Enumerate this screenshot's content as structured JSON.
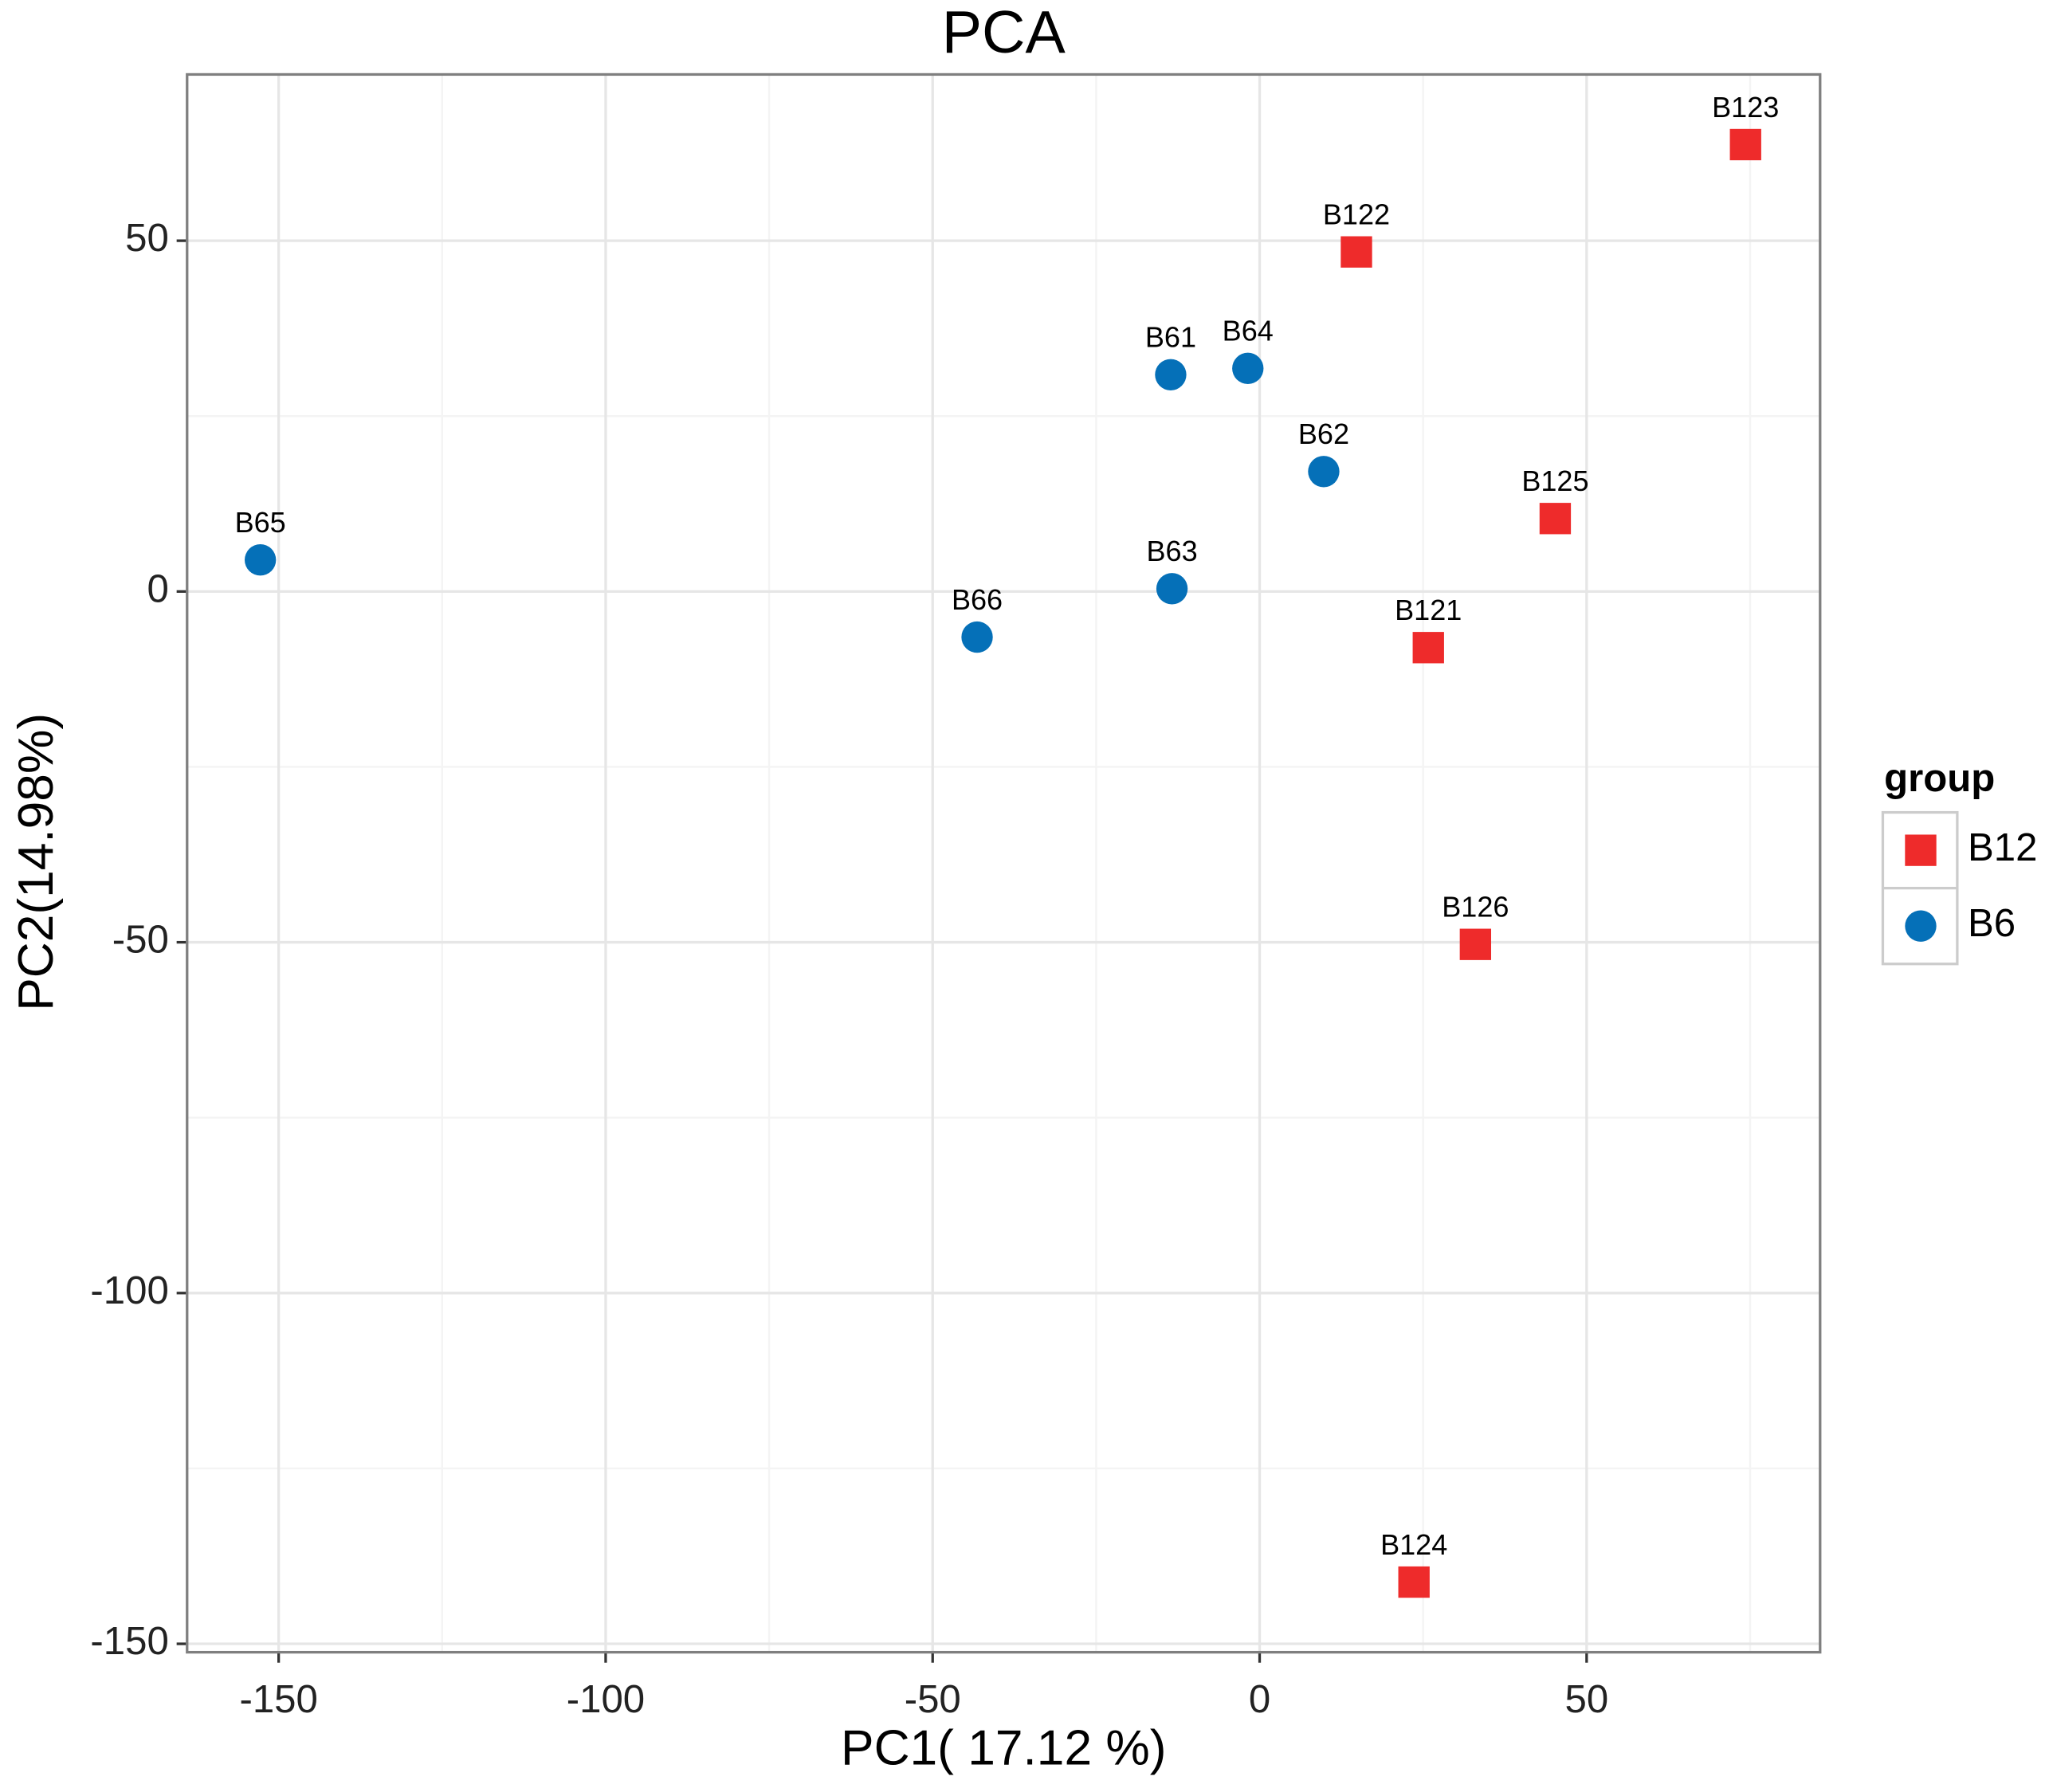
{
  "chart_data": {
    "type": "scatter",
    "title": "PCA",
    "x_label": "PC1( 17.12 %)",
    "y_label": "PC2(14.98%)",
    "xlim": [
      -164.0,
      85.7
    ],
    "ylim": [
      -151.2,
      73.7
    ],
    "xticks": [
      -150,
      -100,
      -50,
      0,
      50
    ],
    "yticks": [
      -150,
      -100,
      -50,
      0,
      50
    ],
    "x_minor_grid": [
      -125,
      -75,
      -25,
      25,
      75
    ],
    "y_minor_grid": [
      -125,
      -75,
      -25,
      25
    ],
    "grid": true,
    "legend": {
      "title": "group",
      "position": "right"
    },
    "series": [
      {
        "name": "B12",
        "color": "#ee2b2b",
        "marker": "square",
        "labels": [
          "B121",
          "B122",
          "B123",
          "B124",
          "B125",
          "B126"
        ],
        "x": [
          25.8,
          14.8,
          74.3,
          23.6,
          45.2,
          33.0
        ],
        "values": [
          -8.0,
          48.4,
          63.7,
          -141.2,
          10.4,
          -50.3
        ]
      },
      {
        "name": "B6",
        "color": "#0570b8",
        "marker": "circle",
        "labels": [
          "B61",
          "B62",
          "B63",
          "B64",
          "B65",
          "B66"
        ],
        "x": [
          -13.6,
          9.8,
          -13.4,
          -1.8,
          -152.8,
          -43.2
        ],
        "values": [
          30.9,
          17.1,
          0.4,
          31.8,
          4.5,
          -6.5
        ]
      }
    ]
  }
}
